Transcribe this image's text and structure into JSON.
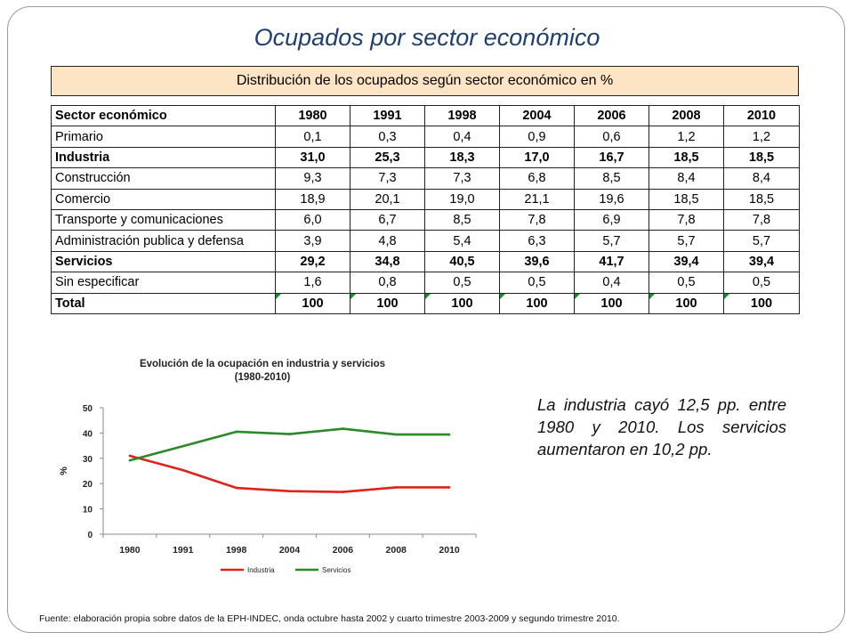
{
  "slide": {
    "title": "Ocupados por sector económico",
    "note": "La industria cayó 12,5 pp. entre 1980 y 2010. Los servicios aumentaron en 10,2 pp.",
    "footer": "Fuente: elaboración propia sobre datos de la EPH-INDEC, onda octubre hasta 2002  y cuarto trimestre 2003-2009  y segundo trimestre 2010."
  },
  "table": {
    "title": "Distribución de los ocupados según sector económico en %",
    "header": [
      "Sector económico",
      "1980",
      "1991",
      "1998",
      "2004",
      "2006",
      "2008",
      "2010"
    ],
    "rows": [
      {
        "label": "Primario",
        "bold": false,
        "values": [
          "0,1",
          "0,3",
          "0,4",
          "0,9",
          "0,6",
          "1,2",
          "1,2"
        ]
      },
      {
        "label": "Industria",
        "bold": true,
        "values": [
          "31,0",
          "25,3",
          "18,3",
          "17,0",
          "16,7",
          "18,5",
          "18,5"
        ]
      },
      {
        "label": "Construcción",
        "bold": false,
        "values": [
          "9,3",
          "7,3",
          "7,3",
          "6,8",
          "8,5",
          "8,4",
          "8,4"
        ]
      },
      {
        "label": "Comercio",
        "bold": false,
        "values": [
          "18,9",
          "20,1",
          "19,0",
          "21,1",
          "19,6",
          "18,5",
          "18,5"
        ]
      },
      {
        "label": "Transporte y comunicaciones",
        "bold": false,
        "values": [
          "6,0",
          "6,7",
          "8,5",
          "7,8",
          "6,9",
          "7,8",
          "7,8"
        ]
      },
      {
        "label": "Administración publica y defensa",
        "bold": false,
        "values": [
          "3,9",
          "4,8",
          "5,4",
          "6,3",
          "5,7",
          "5,7",
          "5,7"
        ]
      },
      {
        "label": "Servicios",
        "bold": true,
        "values": [
          "29,2",
          "34,8",
          "40,5",
          "39,6",
          "41,7",
          "39,4",
          "39,4"
        ]
      },
      {
        "label": "Sin especificar",
        "bold": false,
        "values": [
          "1,6",
          "0,8",
          "0,5",
          "0,5",
          "0,4",
          "0,5",
          "0,5"
        ]
      },
      {
        "label": "Total",
        "bold": true,
        "values": [
          "100",
          "100",
          "100",
          "100",
          "100",
          "100",
          "100"
        ]
      }
    ]
  },
  "chart_data": {
    "type": "line",
    "title": "Evolución de la ocupación en industria y servicios",
    "subtitle": "(1980-2010)",
    "xlabel": "",
    "ylabel": "%",
    "categories": [
      "1980",
      "1991",
      "1998",
      "2004",
      "2006",
      "2008",
      "2010"
    ],
    "ylim": [
      0,
      50
    ],
    "yticks": [
      0,
      10,
      20,
      30,
      40,
      50
    ],
    "grid": false,
    "legend": "bottom",
    "series": [
      {
        "name": "Industria",
        "color": "#e0221c",
        "values": [
          31.0,
          25.3,
          18.3,
          17.0,
          16.7,
          18.5,
          18.5
        ]
      },
      {
        "name": "Servicios",
        "color": "#2a8a2a",
        "values": [
          29.2,
          34.8,
          40.5,
          39.6,
          41.7,
          39.4,
          39.4
        ]
      }
    ]
  }
}
